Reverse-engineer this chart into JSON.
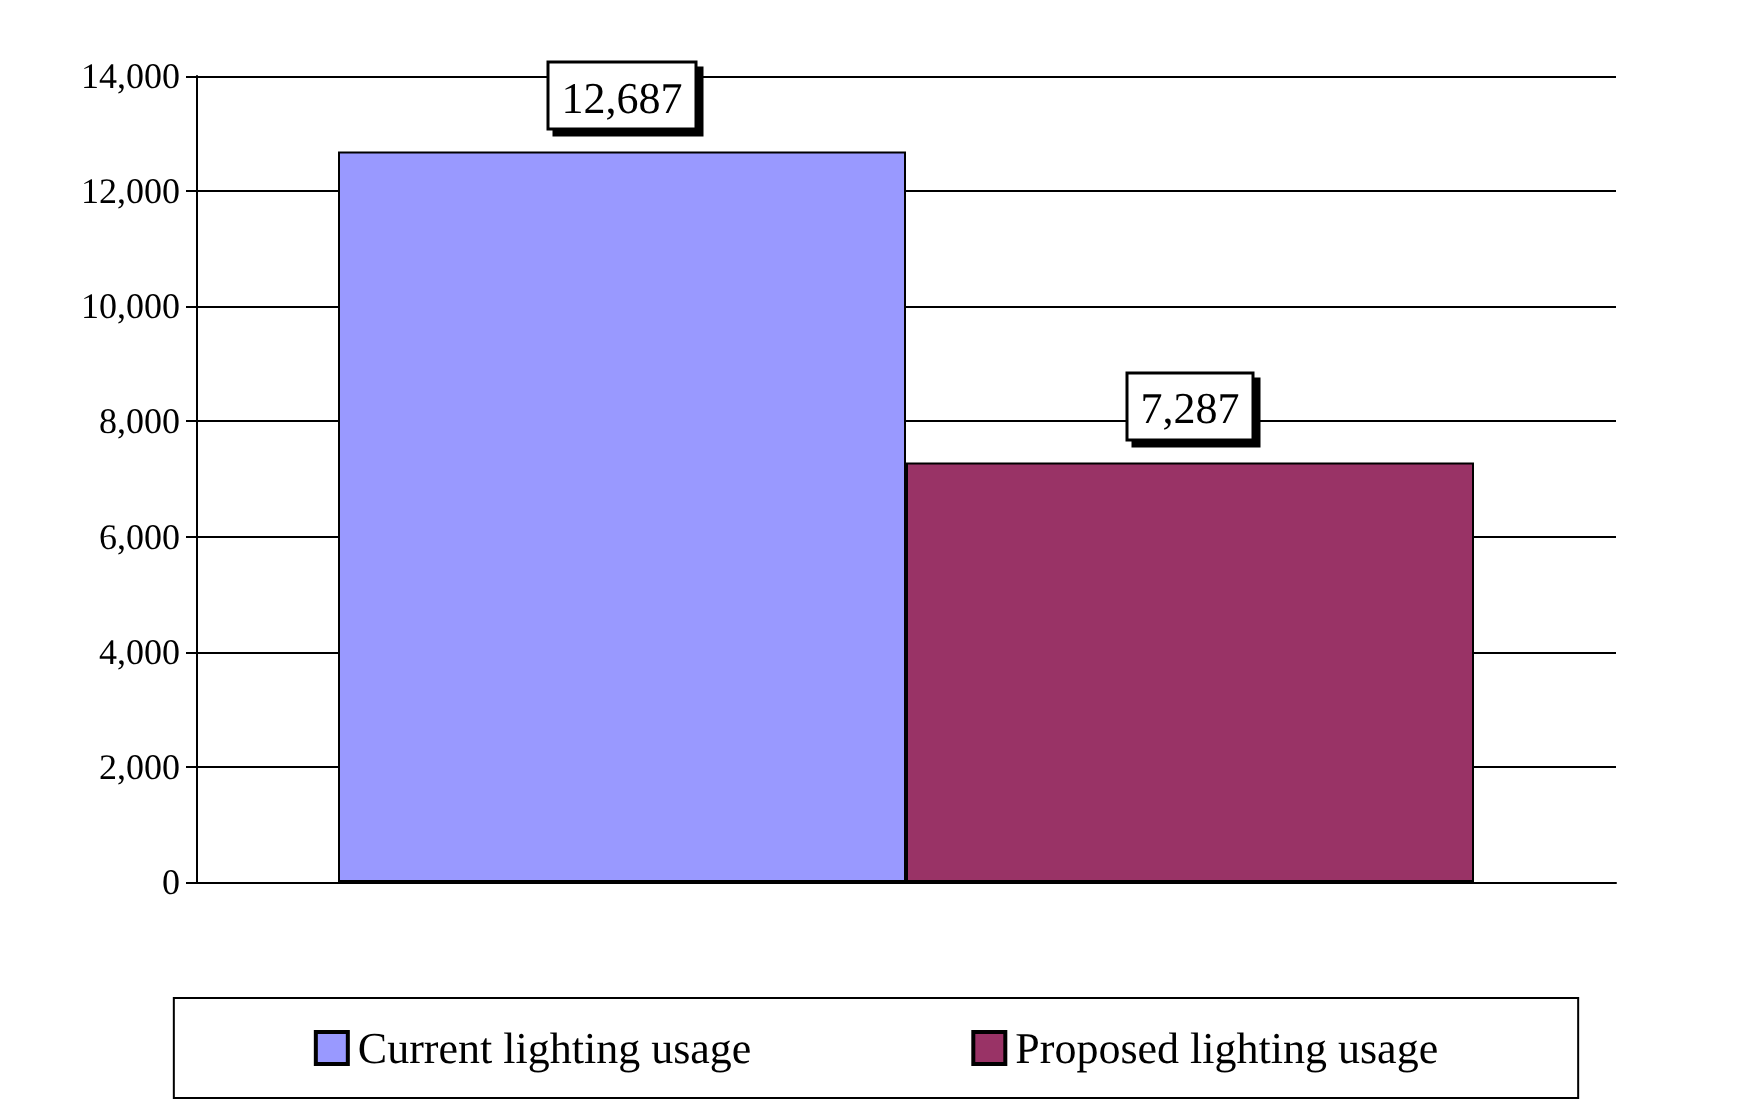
{
  "chart_data": {
    "type": "bar",
    "categories": [
      null
    ],
    "series": [
      {
        "name": "Current lighting usage",
        "color": "#9999ff",
        "values": [
          12687
        ],
        "value_labels": [
          "12,687"
        ]
      },
      {
        "name": "Proposed lighting usage",
        "color": "#993366",
        "values": [
          7287
        ],
        "value_labels": [
          "7,287"
        ]
      }
    ],
    "ylim": [
      0,
      14000
    ],
    "yticks": [
      {
        "value": 0,
        "label": "0"
      },
      {
        "value": 2000,
        "label": "2,000"
      },
      {
        "value": 4000,
        "label": "4,000"
      },
      {
        "value": 6000,
        "label": "6,000"
      },
      {
        "value": 8000,
        "label": "8,000"
      },
      {
        "value": 10000,
        "label": "10,000"
      },
      {
        "value": 12000,
        "label": "12,000"
      },
      {
        "value": 14000,
        "label": "14,000"
      }
    ],
    "grid": "y",
    "legend": "bottom"
  }
}
